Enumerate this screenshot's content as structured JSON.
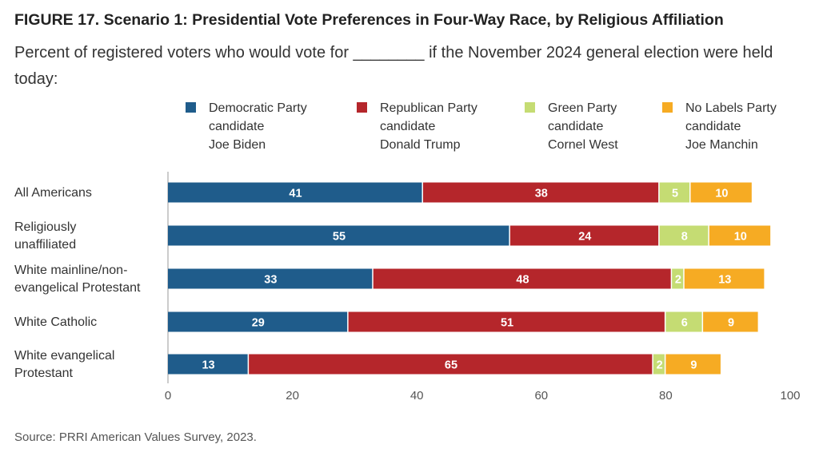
{
  "title": "FIGURE 17.  Scenario 1: Presidential Vote Preferences in Four-Way Race, by Religious Affiliation",
  "subtitle": "Percent of registered voters who would vote for ________ if the November 2024 general election were held today:",
  "source": "Source: PRRI American Values Survey, 2023.",
  "chart_data": {
    "type": "bar",
    "orientation": "horizontal",
    "stacked": true,
    "categories": [
      "All Americans",
      "Religiously unaffiliated",
      "White mainline/non-evangelical Protestant",
      "White Catholic",
      "White evangelical Protestant"
    ],
    "category_lines": [
      [
        "All Americans"
      ],
      [
        "Religiously",
        "unaffiliated"
      ],
      [
        "White mainline/non-",
        "evangelical Protestant"
      ],
      [
        "White Catholic"
      ],
      [
        "White evangelical",
        "Protestant"
      ]
    ],
    "series": [
      {
        "name": "Democratic Party candidate Joe Biden",
        "legend_text": "Democratic Party\ncandidate\nJoe Biden",
        "color": "#1f5c8b",
        "values": [
          41,
          55,
          33,
          29,
          13
        ]
      },
      {
        "name": "Republican Party candidate Donald Trump",
        "legend_text": "Republican Party\ncandidate\nDonald Trump",
        "color": "#b5262b",
        "values": [
          38,
          24,
          48,
          51,
          65
        ]
      },
      {
        "name": "Green Party candidate Cornel West",
        "legend_text": "Green Party\ncandidate\nCornel West",
        "color": "#c5dc73",
        "values": [
          5,
          8,
          2,
          6,
          2
        ]
      },
      {
        "name": "No Labels Party candidate Joe Manchin",
        "legend_text": "No Labels Party\ncandidate\nJoe Manchin",
        "color": "#f6ab23",
        "values": [
          10,
          10,
          13,
          9,
          9
        ]
      }
    ],
    "xlim": [
      0,
      100
    ],
    "xticks": [
      0,
      20,
      40,
      60,
      80,
      100
    ],
    "grid": false,
    "legend_position": "top"
  }
}
